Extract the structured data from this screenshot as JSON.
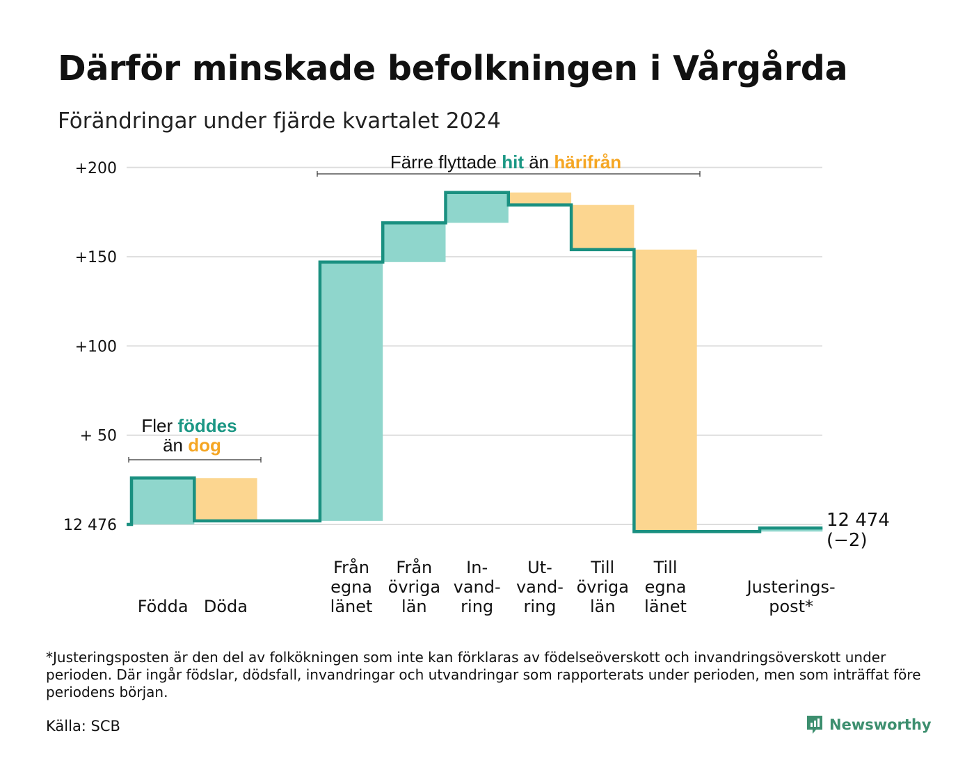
{
  "title": "Därför minskade befolkningen i Vårgårda",
  "subtitle": "Förändringar under fjärde kvartalet 2024",
  "colors": {
    "hit": "#1b9784",
    "harifran": "#f5a623",
    "hit_fill": "#8fd6cc",
    "harifran_fill": "#fcd690",
    "line": "#1a9080",
    "grid": "#dddddd"
  },
  "annotations": {
    "birth": {
      "line1_prefix": "Fler ",
      "line1_highlight": "föddes",
      "line2_prefix": "än ",
      "line2_highlight": "dog"
    },
    "migration": {
      "prefix": "Färre flyttade ",
      "highlight1": "hit",
      "middle": " än ",
      "highlight2": "härifrån"
    }
  },
  "end_label": {
    "value": "12 474",
    "change": "(−2)"
  },
  "footnote": "*Justeringsposten är den del av folkökningen som inte kan förklaras av födelseöverskott och invandringsöverskott under perioden. Där ingår födslar, dödsfall, invandringar och utvandringar som rapporterats under perioden, men som inträffat före periodens början.",
  "source": "Källa: SCB",
  "brand": "Newsworthy",
  "chart_data": {
    "type": "waterfall",
    "base_label": "12 476",
    "y_ticks": [
      {
        "value": 0,
        "label": "12 476"
      },
      {
        "value": 50,
        "label": "+ 50"
      },
      {
        "value": 100,
        "label": "+100"
      },
      {
        "value": 150,
        "label": "+150"
      },
      {
        "value": 200,
        "label": "+200"
      }
    ],
    "ylim": [
      -8,
      205
    ],
    "steps": [
      {
        "category": [
          "Födda"
        ],
        "change": 26,
        "kind": "in"
      },
      {
        "category": [
          "Döda"
        ],
        "change": -24,
        "kind": "out"
      },
      {
        "category": [],
        "change": 0,
        "kind": "none"
      },
      {
        "category": [
          "Från",
          "egna",
          "länet"
        ],
        "change": 145,
        "kind": "in"
      },
      {
        "category": [
          "Från",
          "övriga",
          "län"
        ],
        "change": 22,
        "kind": "in"
      },
      {
        "category": [
          "In-",
          "vand-",
          "ring"
        ],
        "change": 17,
        "kind": "in"
      },
      {
        "category": [
          "Ut-",
          "vand-",
          "ring"
        ],
        "change": -7,
        "kind": "out"
      },
      {
        "category": [
          "Till",
          "övriga",
          "län"
        ],
        "change": -25,
        "kind": "out"
      },
      {
        "category": [
          "Till",
          "egna",
          "länet"
        ],
        "change": -158,
        "kind": "out"
      },
      {
        "category": [],
        "change": 0,
        "kind": "none"
      },
      {
        "category": [
          "Justerings-",
          "post*"
        ],
        "change": 2,
        "kind": "in"
      }
    ],
    "end_value": 12474,
    "net_change": -2
  }
}
